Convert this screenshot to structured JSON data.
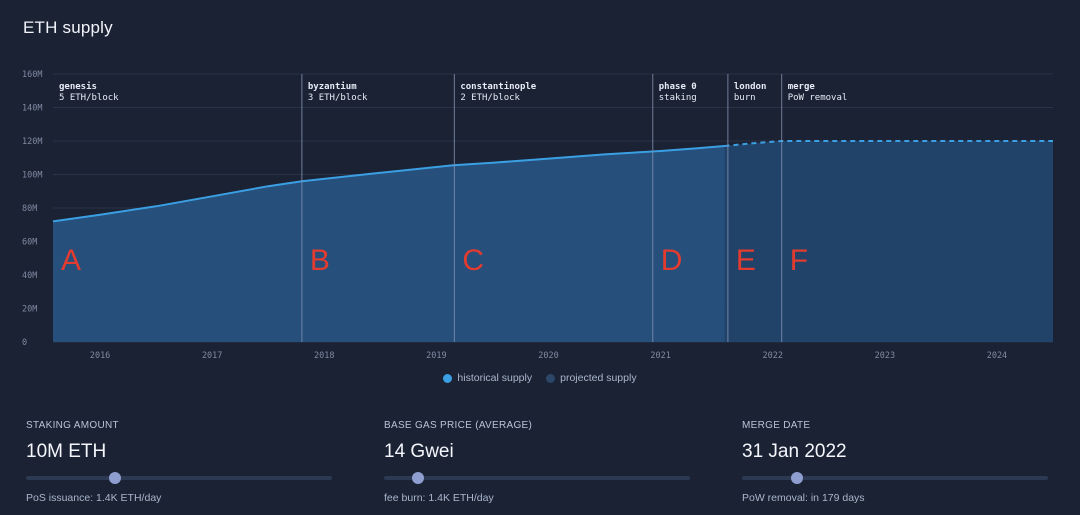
{
  "title": "ETH supply",
  "colors": {
    "background": "#1b2234",
    "historical": "#3b9fe3",
    "historical_fill": "#275280",
    "projected": "#3b9fe3",
    "projected_fill": "#22466e",
    "grid": "#2a3347",
    "tick": "#7f8aa1",
    "marker_letter": "#e23b2f",
    "era_line": "#8593b5"
  },
  "chart_data": {
    "type": "area",
    "title": "ETH supply",
    "ylim": [
      0,
      160
    ],
    "xlim": [
      2015.58,
      2024.5
    ],
    "y_ticks": [
      {
        "value": 0,
        "label": "0"
      },
      {
        "value": 20,
        "label": "20M"
      },
      {
        "value": 40,
        "label": "40M"
      },
      {
        "value": 60,
        "label": "60M"
      },
      {
        "value": 80,
        "label": "80M"
      },
      {
        "value": 100,
        "label": "100M"
      },
      {
        "value": 120,
        "label": "120M"
      },
      {
        "value": 140,
        "label": "140M"
      },
      {
        "value": 160,
        "label": "160M"
      }
    ],
    "x_ticks": [
      {
        "value": 2016.0,
        "label": "2016"
      },
      {
        "value": 2017.0,
        "label": "2017"
      },
      {
        "value": 2018.0,
        "label": "2018"
      },
      {
        "value": 2019.0,
        "label": "2019"
      },
      {
        "value": 2020.0,
        "label": "2020"
      },
      {
        "value": 2021.0,
        "label": "2021"
      },
      {
        "value": 2022.0,
        "label": "2022"
      },
      {
        "value": 2023.0,
        "label": "2023"
      },
      {
        "value": 2024.0,
        "label": "2024"
      }
    ],
    "series": [
      {
        "name": "historical supply",
        "style": "solid",
        "x": [
          2015.58,
          2016.0,
          2016.5,
          2017.0,
          2017.5,
          2017.8,
          2018.5,
          2019.15,
          2019.5,
          2020.0,
          2020.5,
          2021.0,
          2021.3,
          2021.57
        ],
        "values": [
          72.0,
          76.0,
          81.0,
          87.0,
          93.0,
          96.0,
          101.0,
          105.5,
          107.0,
          109.5,
          112.0,
          114.0,
          115.5,
          117.0
        ]
      },
      {
        "name": "projected supply",
        "style": "dashed",
        "x": [
          2021.57,
          2021.8,
          2022.08,
          2023.0,
          2024.0,
          2024.5
        ],
        "values": [
          117.0,
          118.5,
          120.0,
          120.0,
          120.0,
          120.0
        ]
      }
    ],
    "eras": [
      {
        "x": 2015.58,
        "name": "genesis",
        "desc": "5 ETH/block",
        "letter": "A"
      },
      {
        "x": 2017.8,
        "name": "byzantium",
        "desc": "3 ETH/block",
        "letter": "B"
      },
      {
        "x": 2019.16,
        "name": "constantinople",
        "desc": "2 ETH/block",
        "letter": "C"
      },
      {
        "x": 2020.93,
        "name": "phase 0",
        "desc": "staking",
        "letter": "D"
      },
      {
        "x": 2021.6,
        "name": "london",
        "desc": "burn",
        "letter": "E"
      },
      {
        "x": 2022.08,
        "name": "merge",
        "desc": "PoW removal",
        "letter": "F"
      }
    ]
  },
  "legend": {
    "historical": "historical supply",
    "projected": "projected supply"
  },
  "controls": [
    {
      "label": "STAKING AMOUNT",
      "value": "10M ETH",
      "note": "PoS issuance: 1.4K ETH/day",
      "position": 0.29
    },
    {
      "label": "BASE GAS PRICE (AVERAGE)",
      "value": "14 Gwei",
      "note": "fee burn: 1.4K ETH/day",
      "position": 0.11
    },
    {
      "label": "MERGE DATE",
      "value": "31 Jan 2022",
      "note": "PoW removal: in 179 days",
      "position": 0.18
    }
  ]
}
